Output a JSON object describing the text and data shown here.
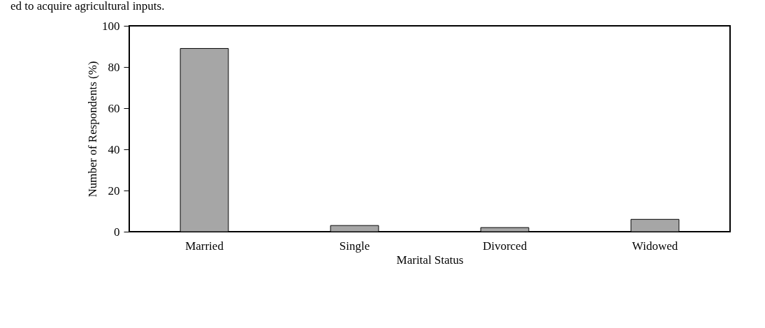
{
  "chart_data": {
    "type": "bar",
    "xlabel": "Marital Status",
    "ylabel": "Number of Respondents (%)",
    "categories": [
      "Married",
      "Single",
      "Divorced",
      "Widowed"
    ],
    "values": [
      89,
      3,
      2,
      6
    ],
    "color": "#a6a6a6",
    "ylim": [
      0,
      100
    ],
    "yticks": [
      0,
      20,
      40,
      60,
      80,
      100
    ],
    "grid": false,
    "annotations": [
      "ed to acquire agricultural inputs."
    ]
  }
}
